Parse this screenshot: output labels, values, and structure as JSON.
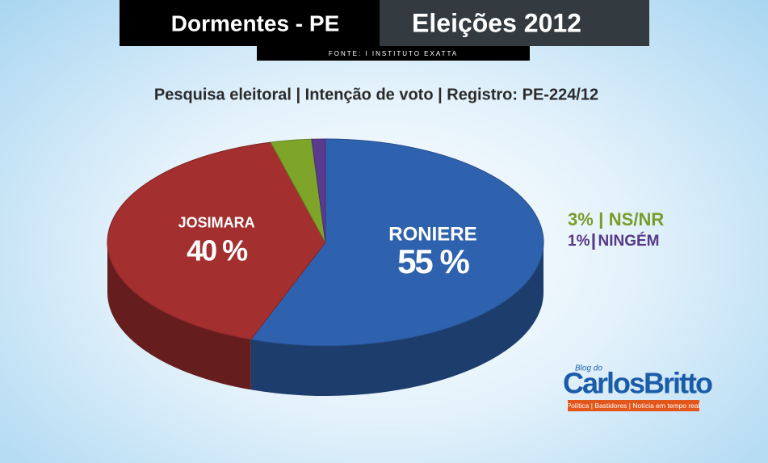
{
  "chart_data": {
    "type": "pie3d",
    "title": "Dormentes - PE",
    "header_right": "Eleições 2012",
    "source": "FONTE: I INSTITUTO EXATTA",
    "subtitle": "Pesquisa eleitoral | Intenção de voto | Registro: PE-224/12",
    "series": [
      {
        "name": "RONIERE",
        "color": "#2f62ae",
        "values": [
          55
        ],
        "value_labels": [
          "55 %"
        ]
      },
      {
        "name": "JOSIMARA",
        "color": "#a32f2f",
        "values": [
          40
        ],
        "value_labels": [
          "40 %"
        ]
      },
      {
        "name": "NS/NR",
        "color": "#7ea52a",
        "values": [
          3
        ],
        "value_labels": [
          "3%"
        ]
      },
      {
        "name": "NINGÉM",
        "color": "#5b3b8e",
        "values": [
          1
        ],
        "value_labels": [
          "1%"
        ]
      }
    ],
    "logo": {
      "small": "Blog do",
      "name": "CarlosBritto",
      "tagline": "Política | Bastidores | Notícia em tempo real"
    }
  }
}
